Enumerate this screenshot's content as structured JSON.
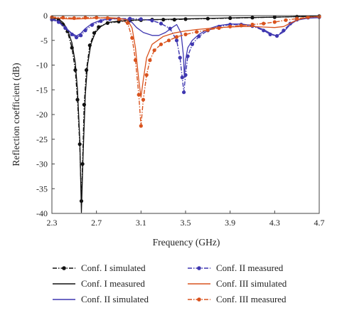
{
  "chart_data": {
    "type": "line",
    "xlabel": "Frequency (GHz)",
    "ylabel": "Reflection coefficient (dB)",
    "xlim": [
      2.3,
      4.7
    ],
    "ylim": [
      -40,
      0
    ],
    "xticks": [
      "2.3",
      "2.7",
      "3.1",
      "3.5",
      "3.9",
      "4.3",
      "4.7"
    ],
    "yticks": [
      "0",
      "-5",
      "-10",
      "-15",
      "-20",
      "-25",
      "-30",
      "-35",
      "-40"
    ],
    "legend_position": "bottom",
    "series": [
      {
        "name": "Conf. I simulated",
        "color": "#111111",
        "style": "dash-dot-marker",
        "points": [
          [
            2.3,
            -0.4
          ],
          [
            2.36,
            -0.9
          ],
          [
            2.4,
            -1.8
          ],
          [
            2.44,
            -3.2
          ],
          [
            2.48,
            -6.5
          ],
          [
            2.51,
            -11
          ],
          [
            2.53,
            -17
          ],
          [
            2.55,
            -26
          ],
          [
            2.565,
            -37.5
          ],
          [
            2.575,
            -30
          ],
          [
            2.59,
            -18
          ],
          [
            2.61,
            -11
          ],
          [
            2.64,
            -6
          ],
          [
            2.68,
            -3.5
          ],
          [
            2.72,
            -2.3
          ],
          [
            2.8,
            -1.5
          ],
          [
            2.9,
            -1.2
          ],
          [
            3.0,
            -1.0
          ],
          [
            3.1,
            -0.9
          ],
          [
            3.2,
            -0.8
          ],
          [
            3.3,
            -0.8
          ],
          [
            3.4,
            -0.8
          ],
          [
            3.5,
            -0.7
          ],
          [
            3.7,
            -0.6
          ],
          [
            3.9,
            -0.5
          ],
          [
            4.1,
            -0.4
          ],
          [
            4.3,
            -0.3
          ],
          [
            4.5,
            -0.2
          ],
          [
            4.7,
            -0.1
          ]
        ]
      },
      {
        "name": "Conf. I measured",
        "color": "#111111",
        "style": "solid",
        "points": [
          [
            2.3,
            -0.3
          ],
          [
            2.36,
            -0.7
          ],
          [
            2.4,
            -1.4
          ],
          [
            2.44,
            -2.8
          ],
          [
            2.48,
            -5.5
          ],
          [
            2.51,
            -9.5
          ],
          [
            2.53,
            -15
          ],
          [
            2.55,
            -25
          ],
          [
            2.565,
            -39.8
          ],
          [
            2.58,
            -28
          ],
          [
            2.6,
            -16
          ],
          [
            2.62,
            -10
          ],
          [
            2.65,
            -5.8
          ],
          [
            2.69,
            -3.4
          ],
          [
            2.74,
            -2.2
          ],
          [
            2.8,
            -1.4
          ],
          [
            2.9,
            -1.1
          ],
          [
            3.0,
            -0.9
          ],
          [
            3.2,
            -0.8
          ],
          [
            3.4,
            -0.7
          ],
          [
            3.6,
            -0.6
          ],
          [
            3.8,
            -0.5
          ],
          [
            4.0,
            -0.4
          ],
          [
            4.3,
            -0.3
          ],
          [
            4.5,
            -0.2
          ],
          [
            4.7,
            -0.1
          ]
        ]
      },
      {
        "name": "Conf. II simulated",
        "color": "#3f37b0",
        "style": "solid",
        "points": [
          [
            2.3,
            -0.6
          ],
          [
            2.36,
            -1.2
          ],
          [
            2.42,
            -2.4
          ],
          [
            2.48,
            -3.6
          ],
          [
            2.52,
            -4.1
          ],
          [
            2.56,
            -3.6
          ],
          [
            2.6,
            -2.6
          ],
          [
            2.66,
            -1.6
          ],
          [
            2.74,
            -0.9
          ],
          [
            2.82,
            -0.6
          ],
          [
            2.9,
            -0.6
          ],
          [
            2.98,
            -0.8
          ],
          [
            3.02,
            -1.4
          ],
          [
            3.06,
            -2.4
          ],
          [
            3.12,
            -3.4
          ],
          [
            3.2,
            -4.0
          ],
          [
            3.26,
            -4.0
          ],
          [
            3.32,
            -3.4
          ],
          [
            3.38,
            -2.4
          ],
          [
            3.42,
            -1.8
          ],
          [
            3.46,
            -3.5
          ],
          [
            3.48,
            -8
          ],
          [
            3.49,
            -12.5
          ],
          [
            3.5,
            -9
          ],
          [
            3.52,
            -6.5
          ],
          [
            3.56,
            -5
          ],
          [
            3.62,
            -3.8
          ],
          [
            3.7,
            -2.7
          ],
          [
            3.8,
            -2.0
          ],
          [
            3.9,
            -1.7
          ],
          [
            4.0,
            -1.7
          ],
          [
            4.1,
            -2.0
          ],
          [
            4.2,
            -2.8
          ],
          [
            4.28,
            -3.8
          ],
          [
            4.32,
            -4.1
          ],
          [
            4.38,
            -3.3
          ],
          [
            4.44,
            -1.8
          ],
          [
            4.5,
            -0.9
          ],
          [
            4.6,
            -0.5
          ],
          [
            4.7,
            -0.4
          ]
        ]
      },
      {
        "name": "Conf. II measured",
        "color": "#3f37b0",
        "style": "dash-dot-marker",
        "points": [
          [
            2.3,
            -0.8
          ],
          [
            2.36,
            -1.3
          ],
          [
            2.42,
            -2.5
          ],
          [
            2.48,
            -3.8
          ],
          [
            2.52,
            -4.4
          ],
          [
            2.56,
            -4.0
          ],
          [
            2.6,
            -3.0
          ],
          [
            2.66,
            -1.9
          ],
          [
            2.74,
            -1.1
          ],
          [
            2.82,
            -0.7
          ],
          [
            2.9,
            -0.6
          ],
          [
            3.0,
            -0.6
          ],
          [
            3.1,
            -0.7
          ],
          [
            3.2,
            -1.0
          ],
          [
            3.28,
            -1.6
          ],
          [
            3.36,
            -2.6
          ],
          [
            3.42,
            -5.0
          ],
          [
            3.45,
            -8.5
          ],
          [
            3.47,
            -12.5
          ],
          [
            3.485,
            -15.5
          ],
          [
            3.5,
            -12
          ],
          [
            3.52,
            -8.2
          ],
          [
            3.56,
            -5.8
          ],
          [
            3.62,
            -4.2
          ],
          [
            3.7,
            -3.0
          ],
          [
            3.8,
            -2.2
          ],
          [
            3.9,
            -1.8
          ],
          [
            4.0,
            -1.8
          ],
          [
            4.1,
            -2.1
          ],
          [
            4.2,
            -3.0
          ],
          [
            4.26,
            -3.8
          ],
          [
            4.32,
            -4.1
          ],
          [
            4.38,
            -3.0
          ],
          [
            4.44,
            -1.6
          ],
          [
            4.5,
            -0.8
          ],
          [
            4.6,
            -0.4
          ],
          [
            4.7,
            -0.3
          ]
        ]
      },
      {
        "name": "Conf. III simulated",
        "color": "#d9531e",
        "style": "solid",
        "points": [
          [
            2.3,
            -0.4
          ],
          [
            2.4,
            -0.6
          ],
          [
            2.5,
            -0.7
          ],
          [
            2.6,
            -0.6
          ],
          [
            2.7,
            -0.5
          ],
          [
            2.8,
            -0.4
          ],
          [
            2.9,
            -0.5
          ],
          [
            2.98,
            -0.9
          ],
          [
            3.02,
            -2.5
          ],
          [
            3.05,
            -6.5
          ],
          [
            3.08,
            -13
          ],
          [
            3.1,
            -16.5
          ],
          [
            3.12,
            -13
          ],
          [
            3.15,
            -8.5
          ],
          [
            3.2,
            -5.8
          ],
          [
            3.3,
            -4.2
          ],
          [
            3.4,
            -3.5
          ],
          [
            3.5,
            -3.1
          ],
          [
            3.6,
            -2.8
          ],
          [
            3.7,
            -2.6
          ],
          [
            3.8,
            -2.4
          ],
          [
            3.9,
            -2.3
          ],
          [
            4.0,
            -2.2
          ],
          [
            4.1,
            -2.2
          ],
          [
            4.2,
            -2.3
          ],
          [
            4.3,
            -2.4
          ],
          [
            4.38,
            -2.2
          ],
          [
            4.46,
            -1.3
          ],
          [
            4.54,
            -0.6
          ],
          [
            4.62,
            -0.3
          ],
          [
            4.7,
            -0.2
          ]
        ]
      },
      {
        "name": "Conf. III measured",
        "color": "#d9531e",
        "style": "dash-dot-marker",
        "points": [
          [
            2.3,
            -0.3
          ],
          [
            2.4,
            -0.4
          ],
          [
            2.5,
            -0.5
          ],
          [
            2.6,
            -0.4
          ],
          [
            2.7,
            -0.4
          ],
          [
            2.8,
            -0.5
          ],
          [
            2.9,
            -0.7
          ],
          [
            2.98,
            -1.5
          ],
          [
            3.02,
            -4.5
          ],
          [
            3.05,
            -9
          ],
          [
            3.08,
            -16
          ],
          [
            3.1,
            -22.3
          ],
          [
            3.12,
            -17
          ],
          [
            3.15,
            -12
          ],
          [
            3.18,
            -9
          ],
          [
            3.22,
            -7
          ],
          [
            3.28,
            -5.8
          ],
          [
            3.35,
            -5.0
          ],
          [
            3.42,
            -4.3
          ],
          [
            3.5,
            -3.8
          ],
          [
            3.6,
            -3.3
          ],
          [
            3.7,
            -2.9
          ],
          [
            3.8,
            -2.5
          ],
          [
            3.9,
            -2.2
          ],
          [
            4.0,
            -2.0
          ],
          [
            4.1,
            -1.8
          ],
          [
            4.2,
            -1.6
          ],
          [
            4.3,
            -1.3
          ],
          [
            4.4,
            -0.9
          ],
          [
            4.5,
            -0.6
          ],
          [
            4.6,
            -0.3
          ],
          [
            4.7,
            -0.2
          ]
        ]
      }
    ]
  }
}
